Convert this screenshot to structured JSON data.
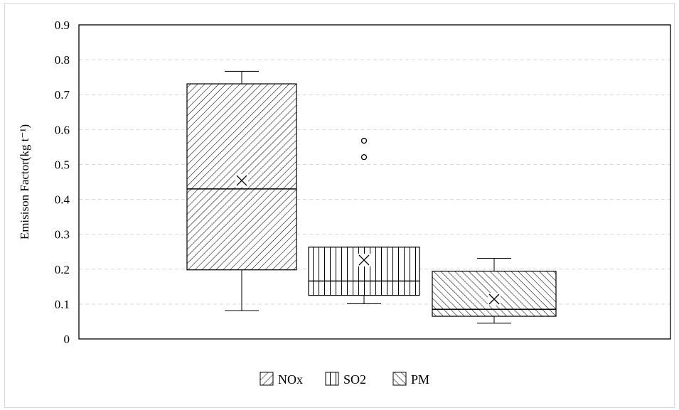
{
  "chart_data": {
    "type": "box",
    "title": "",
    "xlabel": "",
    "ylabel": "Emisison Factor(kg t⁻¹)",
    "ylim": [
      0,
      0.9
    ],
    "yticks": [
      "0",
      "0.1",
      "0.2",
      "0.3",
      "0.4",
      "0.5",
      "0.6",
      "0.7",
      "0.8",
      "0.9"
    ],
    "grid": "horizontal-dashed",
    "legend_position": "bottom-center",
    "series": [
      {
        "name": "NOx",
        "pattern": "diagonal-forward",
        "whisker_low": 0.081,
        "q1": 0.198,
        "median": 0.43,
        "q3": 0.731,
        "whisker_high": 0.767,
        "mean": 0.454,
        "outliers": []
      },
      {
        "name": "SO2",
        "pattern": "vertical",
        "whisker_low": 0.101,
        "q1": 0.125,
        "median": 0.166,
        "q3": 0.263,
        "whisker_high": 0.263,
        "mean": 0.226,
        "outliers": [
          0.521,
          0.568
        ]
      },
      {
        "name": "PM",
        "pattern": "diagonal-backward",
        "whisker_low": 0.045,
        "q1": 0.065,
        "median": 0.085,
        "q3": 0.194,
        "whisker_high": 0.231,
        "mean": 0.114,
        "outliers": []
      }
    ]
  }
}
